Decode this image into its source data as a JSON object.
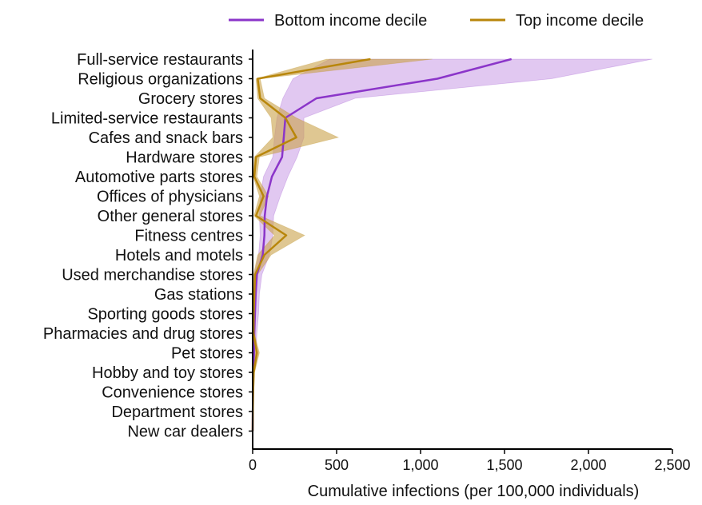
{
  "chart_data": {
    "type": "line",
    "orientation": "horizontal",
    "title": "",
    "xlabel": "Cumulative infections (per 100,000 individuals)",
    "ylabel": "",
    "xlim": [
      0,
      2500
    ],
    "xticks": [
      0,
      500,
      1000,
      1500,
      2000,
      2500
    ],
    "xtick_labels": [
      "0",
      "500",
      "1,000",
      "1,500",
      "2,000",
      "2,500"
    ],
    "legend_position": "top",
    "categories": [
      "Full-service restaurants",
      "Religious organizations",
      "Grocery stores",
      "Limited-service restaurants",
      "Cafes and snack bars",
      "Hardware stores",
      "Automotive parts stores",
      "Offices of physicians",
      "Other general stores",
      "Fitness centres",
      "Hotels and motels",
      "Used merchandise stores",
      "Gas stations",
      "Sporting goods stores",
      "Pharmacies and drug stores",
      "Pet stores",
      "Hobby and toy stores",
      "Convenience stores",
      "Department stores",
      "New car dealers"
    ],
    "series": [
      {
        "name": "Bottom income decile",
        "color": "#8b35c9",
        "band_color": "#c89ae6",
        "values": [
          1540,
          1100,
          380,
          195,
          185,
          175,
          115,
          85,
          72,
          70,
          60,
          25,
          18,
          14,
          10,
          8,
          4,
          2,
          1,
          0
        ],
        "lower": [
          460,
          240,
          180,
          145,
          130,
          120,
          65,
          45,
          40,
          45,
          35,
          10,
          6,
          5,
          4,
          3,
          1,
          0,
          0,
          0
        ],
        "upper": [
          2380,
          1780,
          610,
          305,
          305,
          265,
          210,
          165,
          125,
          120,
          100,
          55,
          40,
          35,
          25,
          20,
          10,
          6,
          3,
          1
        ]
      },
      {
        "name": "Top income decile",
        "color": "#b8860b",
        "band_color": "#c9a24a",
        "values": [
          700,
          30,
          45,
          195,
          260,
          20,
          10,
          65,
          20,
          200,
          70,
          15,
          10,
          6,
          5,
          25,
          6,
          3,
          1,
          0
        ],
        "lower": [
          440,
          20,
          30,
          110,
          120,
          10,
          3,
          40,
          8,
          130,
          30,
          5,
          3,
          2,
          2,
          10,
          2,
          1,
          0,
          0
        ],
        "upper": [
          1070,
          45,
          70,
          260,
          510,
          40,
          25,
          95,
          45,
          310,
          110,
          30,
          20,
          12,
          10,
          40,
          12,
          6,
          3,
          1
        ]
      }
    ]
  }
}
